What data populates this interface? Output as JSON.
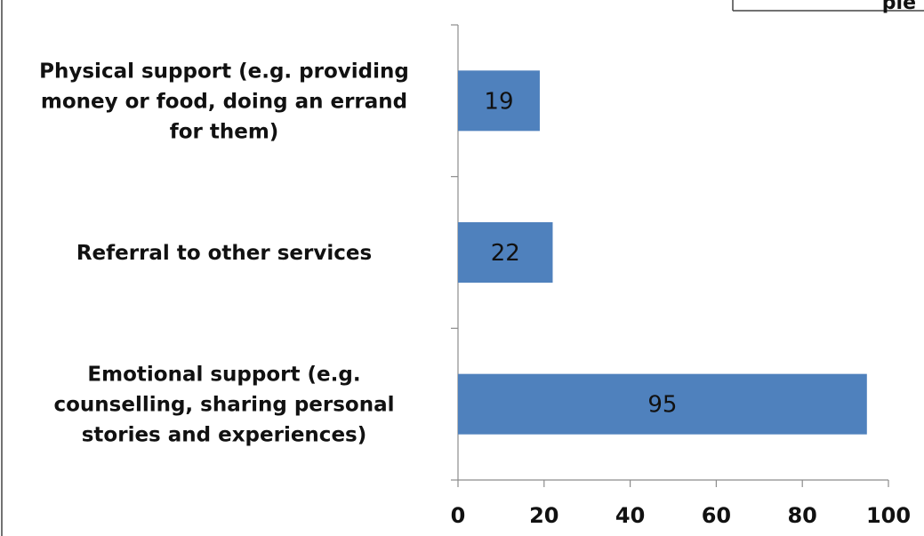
{
  "header_fragment": "ple",
  "chart_data": {
    "type": "bar",
    "orientation": "horizontal",
    "categories": [
      "Physical  support (e.g.  providing money or food, doing an  errand for  them)",
      "Referral to other services",
      "Emotional support (e.g. counselling, sharing personal stories and experiences)"
    ],
    "category_lines": [
      [
        "Physical  support (e.g.  providing",
        "money or food, doing an  errand",
        "for  them)"
      ],
      [
        "Referral to other services"
      ],
      [
        "Emotional support (e.g.",
        "counselling, sharing personal",
        "stories and experiences)"
      ]
    ],
    "values": [
      19,
      22,
      95
    ],
    "data_labels": [
      "19",
      "22",
      "95"
    ],
    "xlim": [
      0,
      100
    ],
    "xticks": [
      0,
      20,
      40,
      60,
      80,
      100
    ],
    "xtick_labels": [
      "0",
      "20",
      "40",
      "60",
      "80",
      "100"
    ],
    "bar_color": "#4f81bd",
    "grid": false,
    "legend": "none",
    "title": "",
    "xlabel": "",
    "ylabel": ""
  }
}
